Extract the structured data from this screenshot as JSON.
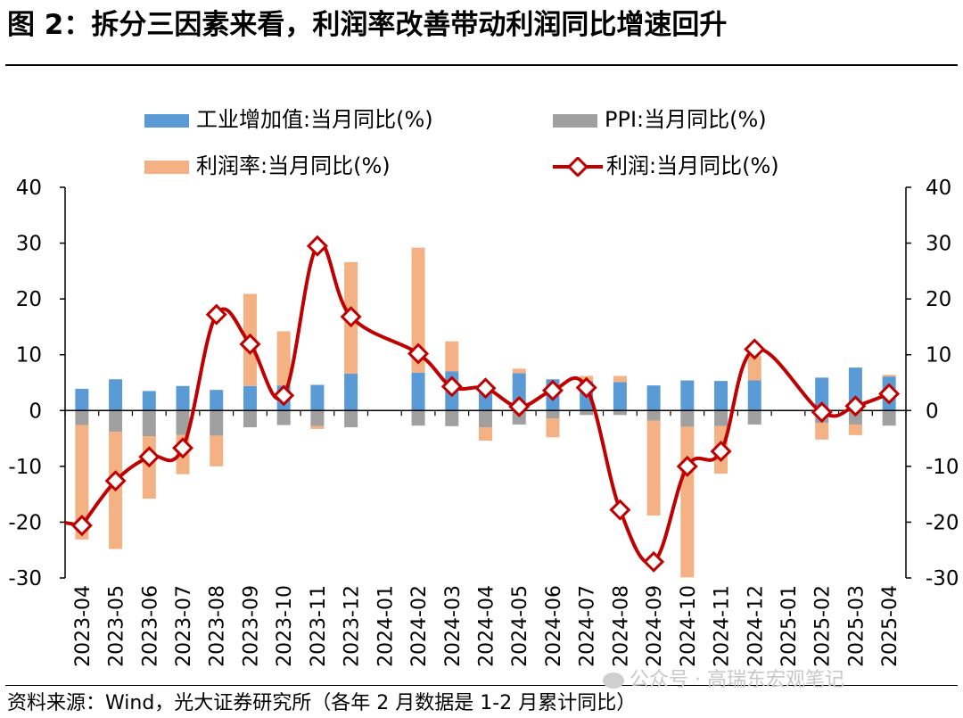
{
  "title": "图 2：拆分三因素来看，利润率改善带动利润同比增速回升",
  "source": "资料来源：Wind，光大证券研究所（各年 2 月数据是 1-2 月累计同比）",
  "watermark": "公众号 · 高瑞东宏观笔记",
  "chart_data": {
    "type": "bar",
    "categories": [
      "2023-04",
      "2023-05",
      "2023-06",
      "2023-07",
      "2023-08",
      "2023-09",
      "2023-10",
      "2023-11",
      "2023-12",
      "2024-01",
      "2024-02",
      "2024-03",
      "2024-04",
      "2024-05",
      "2024-06",
      "2024-07",
      "2024-08",
      "2024-09",
      "2024-10",
      "2024-11",
      "2024-12",
      "2025-01",
      "2025-02",
      "2025-03",
      "2025-04"
    ],
    "ylim": [
      -30,
      40
    ],
    "yticks": [
      -30,
      -20,
      -10,
      0,
      10,
      20,
      30,
      40
    ],
    "legend_position": "top",
    "series": [
      {
        "name": "工业增加值:当月同比(%)",
        "kind": "bar",
        "color": "#5b9bd5",
        "values": [
          3.9,
          5.6,
          3.5,
          4.4,
          3.7,
          4.4,
          4.5,
          4.6,
          6.6,
          null,
          6.8,
          7.0,
          3.2,
          6.7,
          5.6,
          5.3,
          5.1,
          4.5,
          5.4,
          5.3,
          5.4,
          null,
          5.9,
          7.7,
          6.1
        ]
      },
      {
        "name": "PPI:当月同比(%)",
        "kind": "bar",
        "color": "#a0a0a0",
        "values": [
          -2.6,
          -3.8,
          -4.6,
          -4.4,
          -4.5,
          -3.0,
          -2.6,
          -2.8,
          -3.0,
          null,
          -2.7,
          -2.8,
          -3.0,
          -2.5,
          -1.4,
          -0.8,
          -0.8,
          -1.8,
          -2.9,
          -2.8,
          -2.5,
          null,
          -2.2,
          -2.5,
          -2.7
        ]
      },
      {
        "name": "利润率:当月同比(%)",
        "kind": "bar",
        "color": "#f4b183",
        "values": [
          -20.5,
          -21.0,
          -11.2,
          -7.0,
          -5.5,
          16.5,
          9.7,
          -0.5,
          20.0,
          null,
          22.4,
          5.4,
          -2.4,
          0.8,
          -3.4,
          0.9,
          1.1,
          -17.0,
          -27.0,
          -8.5,
          4.4,
          null,
          -3.0,
          -1.9,
          0.3
        ]
      },
      {
        "name": "利润:当月同比(%)",
        "kind": "line",
        "color": "#c00000",
        "values": [
          -20.6,
          -12.6,
          -8.3,
          -6.7,
          17.2,
          11.9,
          2.7,
          29.5,
          16.8,
          null,
          10.2,
          4.3,
          4.0,
          0.7,
          3.6,
          4.1,
          -17.8,
          -27.1,
          -10.0,
          -7.3,
          11.0,
          null,
          -0.3,
          0.8,
          3.0
        ]
      }
    ]
  }
}
